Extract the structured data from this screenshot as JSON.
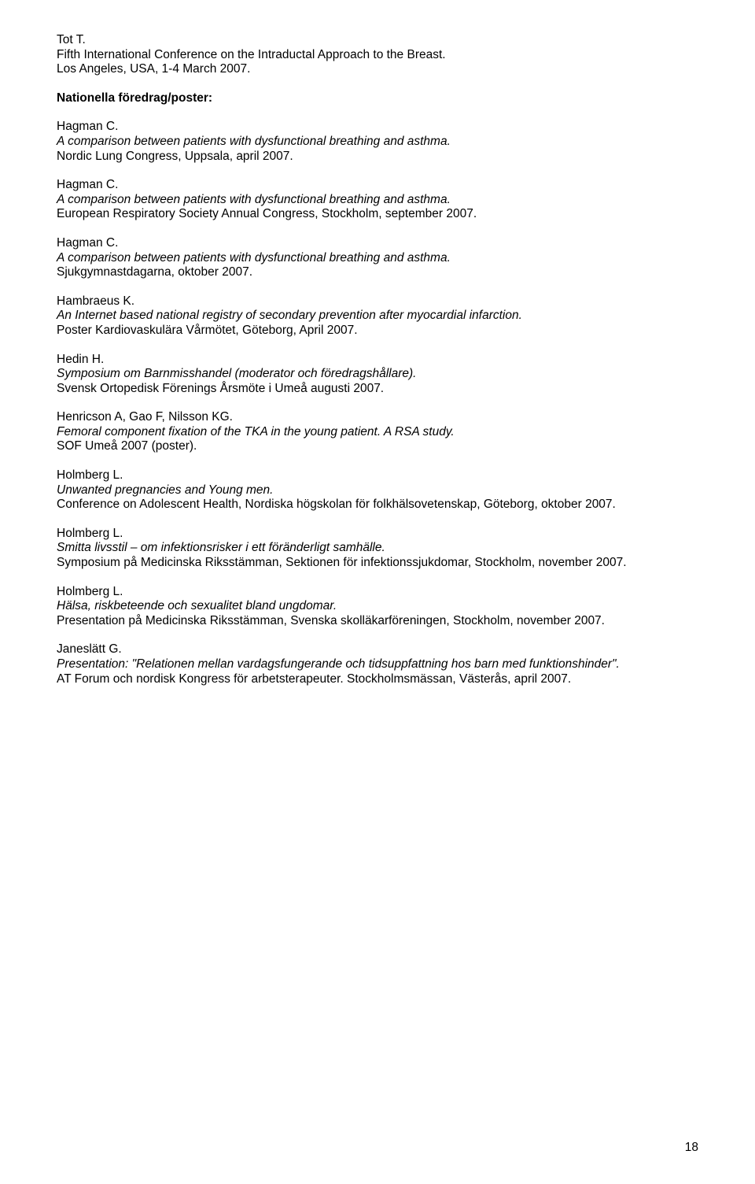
{
  "top": {
    "author": "Tot T.",
    "title": "Fifth International Conference on the Intraductal Approach to the Breast.",
    "venue": "Los Angeles, USA, 1-4 March 2007."
  },
  "sectionHeading": "Nationella föredrag/poster:",
  "entries": [
    {
      "author": "Hagman C.",
      "title": "A comparison between patients with dysfunctional breathing and asthma.",
      "venue": "Nordic Lung Congress, Uppsala, april 2007."
    },
    {
      "author": "Hagman C.",
      "title": "A comparison between patients with dysfunctional breathing and asthma.",
      "venue": "European Respiratory Society Annual Congress, Stockholm, september 2007."
    },
    {
      "author": "Hagman C.",
      "title": "A comparison between patients with dysfunctional breathing and asthma.",
      "venue": "Sjukgymnastdagarna, oktober 2007."
    },
    {
      "author": "Hambraeus K.",
      "title": "An Internet based national registry of secondary prevention after myocardial infarction.",
      "venue": "Poster Kardiovaskulära Vårmötet, Göteborg, April 2007."
    },
    {
      "author": "Hedin H.",
      "title": "Symposium om Barnmisshandel (moderator och föredragshållare).",
      "venue": "Svensk Ortopedisk Förenings Årsmöte i Umeå augusti 2007."
    },
    {
      "author": "Henricson A, Gao F, Nilsson KG.",
      "title": "Femoral component fixation of the TKA in the young patient. A RSA study.",
      "venue": "SOF Umeå 2007 (poster)."
    },
    {
      "author": "Holmberg L.",
      "title": "Unwanted pregnancies and Young men.",
      "venue": "Conference on Adolescent Health, Nordiska högskolan för folkhälsovetenskap, Göteborg, oktober 2007."
    },
    {
      "author": "Holmberg L.",
      "title": "Smitta livsstil – om infektionsrisker i ett föränderligt samhälle.",
      "venue": "Symposium på Medicinska Riksstämman, Sektionen för infektionssjukdomar, Stockholm, november 2007."
    },
    {
      "author": "Holmberg L.",
      "title": "Hälsa, riskbeteende och sexualitet bland ungdomar.",
      "venue": "Presentation på Medicinska Riksstämman, Svenska skolläkarföreningen, Stockholm, november 2007."
    },
    {
      "author": "Janeslätt G.",
      "title": "Presentation: \"Relationen mellan vardagsfungerande och tidsuppfattning hos barn med funktionshinder\".",
      "venue": "AT Forum och nordisk Kongress för arbetsterapeuter. Stockholmsmässan, Västerås, april 2007."
    }
  ],
  "pageNumber": "18"
}
